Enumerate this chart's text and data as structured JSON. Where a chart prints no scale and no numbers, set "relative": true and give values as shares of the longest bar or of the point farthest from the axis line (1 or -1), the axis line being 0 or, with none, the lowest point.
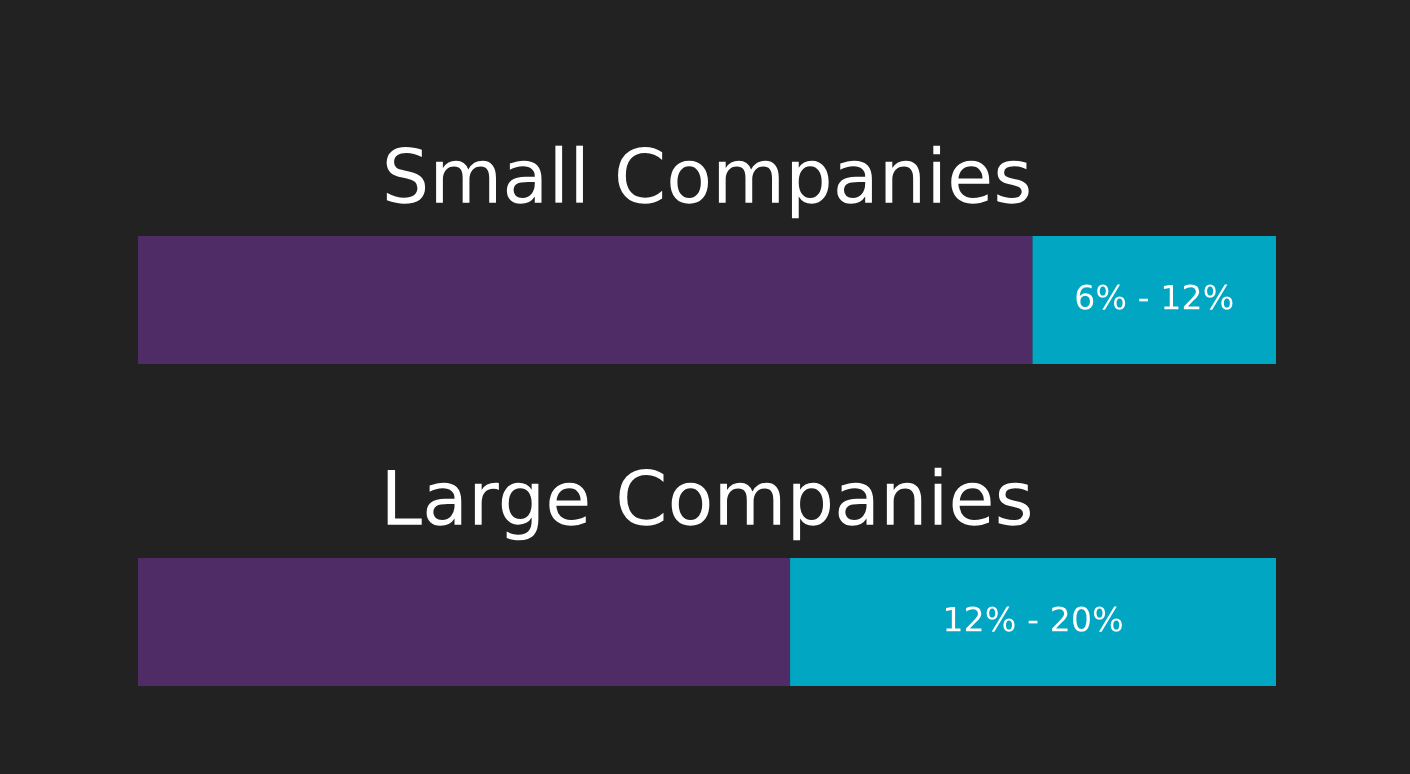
{
  "chart_data": [
    {
      "type": "bar",
      "title": "Small Companies",
      "orientation": "horizontal",
      "stacked": true,
      "relative": true,
      "categories": [
        null
      ],
      "annotations": [
        "6% - 12%"
      ],
      "series": [
        {
          "color": "#4f2c66",
          "values": [
            0.786
          ]
        },
        {
          "color": "#00a6c2",
          "values": [
            0.214
          ]
        }
      ]
    },
    {
      "type": "bar",
      "title": "Large Companies",
      "orientation": "horizontal",
      "stacked": true,
      "relative": true,
      "categories": [
        null
      ],
      "annotations": [
        "12% - 20%"
      ],
      "series": [
        {
          "color": "#4f2c66",
          "values": [
            0.573
          ]
        },
        {
          "color": "#00a6c2",
          "values": [
            0.427
          ]
        }
      ]
    }
  ]
}
